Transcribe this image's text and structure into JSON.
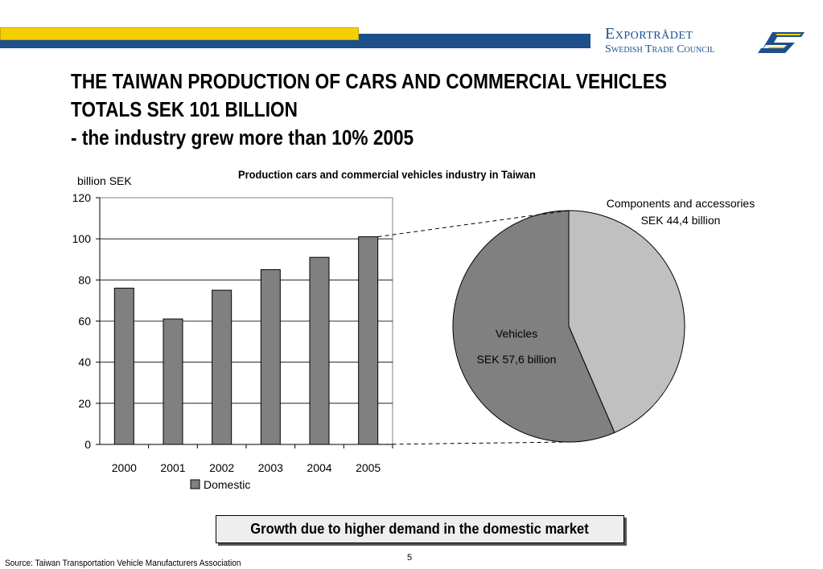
{
  "brand": {
    "name_line1": "Exportrådet",
    "name_line2": "Swedish Trade Council",
    "logo": "exportradet-s-logo-icon",
    "colors": {
      "blue": "#1c4f8c",
      "yellow": "#f5d000"
    }
  },
  "slide": {
    "title_line1": "THE TAIWAN PRODUCTION OF CARS AND COMMERCIAL VEHICLES",
    "title_line2": "TOTALS SEK 101 BILLION",
    "title_line3": "- the industry grew more than 10% 2005",
    "callout": "Growth due to higher demand in the domestic market",
    "page_number": "5",
    "source": "Source: Taiwan Transportation Vehicle Manufacturers Association"
  },
  "chart_data": [
    {
      "type": "bar",
      "title": "Production cars and commercial vehicles industry in Taiwan",
      "ylabel": "billion SEK",
      "categories": [
        "2000",
        "2001",
        "2002",
        "2003",
        "2004",
        "2005"
      ],
      "series": [
        {
          "name": "Domestic",
          "values": [
            76,
            61,
            75,
            85,
            91,
            101
          ],
          "color": "#808080"
        }
      ],
      "ylim": [
        0,
        120
      ],
      "yticks": [
        "0",
        "20",
        "40",
        "60",
        "80",
        "100",
        "120"
      ],
      "grid": true,
      "legend": "bottom"
    },
    {
      "type": "pie",
      "slices": [
        {
          "label": "Components and accessories",
          "value_label": "SEK 44,4 billion",
          "value": 44.4,
          "color": "#c0c0c0"
        },
        {
          "label": "Vehicles",
          "value_label": "SEK 57,6 billion",
          "value": 57.6,
          "color": "#808080"
        }
      ]
    }
  ]
}
